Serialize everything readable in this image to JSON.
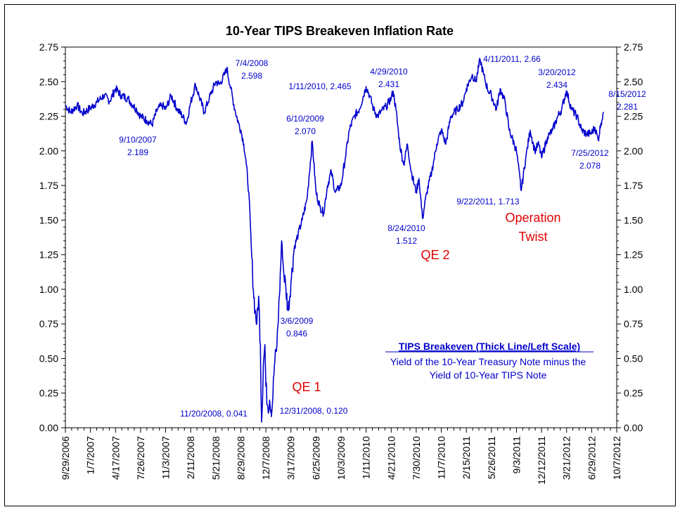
{
  "chart_data": {
    "type": "line",
    "title": "10-Year TIPS Breakeven Inflation Rate",
    "ylim": [
      0,
      2.75
    ],
    "y_ticks": [
      "0.00",
      "0.25",
      "0.50",
      "0.75",
      "1.00",
      "1.25",
      "1.50",
      "1.75",
      "2.00",
      "2.25",
      "2.50",
      "2.75"
    ],
    "x_range": [
      "2006-09-29",
      "2012-10-07"
    ],
    "x_ticks": [
      {
        "label": "9/29/2006",
        "date": "2006-09-29"
      },
      {
        "label": "1/7/2007",
        "date": "2007-01-07"
      },
      {
        "label": "4/17/2007",
        "date": "2007-04-17"
      },
      {
        "label": "7/26/2007",
        "date": "2007-07-26"
      },
      {
        "label": "11/3/2007",
        "date": "2007-11-03"
      },
      {
        "label": "2/11/2008",
        "date": "2008-02-11"
      },
      {
        "label": "5/21/2008",
        "date": "2008-05-21"
      },
      {
        "label": "8/29/2008",
        "date": "2008-08-29"
      },
      {
        "label": "12/7/2008",
        "date": "2008-12-07"
      },
      {
        "label": "3/17/2009",
        "date": "2009-03-17"
      },
      {
        "label": "6/25/2009",
        "date": "2009-06-25"
      },
      {
        "label": "10/3/2009",
        "date": "2009-10-03"
      },
      {
        "label": "1/11/2010",
        "date": "2010-01-11"
      },
      {
        "label": "4/21/2010",
        "date": "2010-04-21"
      },
      {
        "label": "7/30/2010",
        "date": "2010-07-30"
      },
      {
        "label": "11/7/2010",
        "date": "2010-11-07"
      },
      {
        "label": "2/15/2011",
        "date": "2011-02-15"
      },
      {
        "label": "5/26/2011",
        "date": "2011-05-26"
      },
      {
        "label": "9/3/2011",
        "date": "2011-09-03"
      },
      {
        "label": "12/12/2011",
        "date": "2011-12-12"
      },
      {
        "label": "3/21/2012",
        "date": "2012-03-21"
      },
      {
        "label": "6/29/2012",
        "date": "2012-06-29"
      },
      {
        "label": "10/7/2012",
        "date": "2012-10-07"
      }
    ],
    "series": [
      {
        "name": "TIPS Breakeven",
        "color": "#0000cc",
        "points": [
          [
            "2006-09-29",
            2.33
          ],
          [
            "2006-10-20",
            2.28
          ],
          [
            "2006-11-15",
            2.33
          ],
          [
            "2006-12-05",
            2.27
          ],
          [
            "2007-01-07",
            2.31
          ],
          [
            "2007-02-01",
            2.35
          ],
          [
            "2007-03-01",
            2.4
          ],
          [
            "2007-03-25",
            2.36
          ],
          [
            "2007-04-17",
            2.45
          ],
          [
            "2007-05-10",
            2.4
          ],
          [
            "2007-06-05",
            2.38
          ],
          [
            "2007-06-25",
            2.33
          ],
          [
            "2007-07-10",
            2.3
          ],
          [
            "2007-07-26",
            2.25
          ],
          [
            "2007-08-20",
            2.22
          ],
          [
            "2007-09-10",
            2.19
          ],
          [
            "2007-10-01",
            2.3
          ],
          [
            "2007-10-20",
            2.33
          ],
          [
            "2007-11-03",
            2.3
          ],
          [
            "2007-11-25",
            2.4
          ],
          [
            "2007-12-20",
            2.3
          ],
          [
            "2008-01-10",
            2.25
          ],
          [
            "2008-01-25",
            2.2
          ],
          [
            "2008-02-11",
            2.35
          ],
          [
            "2008-03-01",
            2.48
          ],
          [
            "2008-03-15",
            2.4
          ],
          [
            "2008-04-05",
            2.28
          ],
          [
            "2008-04-25",
            2.38
          ],
          [
            "2008-05-21",
            2.5
          ],
          [
            "2008-06-05",
            2.48
          ],
          [
            "2008-06-25",
            2.55
          ],
          [
            "2008-07-04",
            2.598
          ],
          [
            "2008-07-20",
            2.45
          ],
          [
            "2008-08-05",
            2.3
          ],
          [
            "2008-08-20",
            2.2
          ],
          [
            "2008-08-29",
            2.15
          ],
          [
            "2008-09-10",
            2.05
          ],
          [
            "2008-09-20",
            1.9
          ],
          [
            "2008-09-30",
            1.7
          ],
          [
            "2008-10-10",
            1.3
          ],
          [
            "2008-10-18",
            1.0
          ],
          [
            "2008-10-25",
            0.85
          ],
          [
            "2008-11-01",
            0.75
          ],
          [
            "2008-11-08",
            0.95
          ],
          [
            "2008-11-15",
            0.6
          ],
          [
            "2008-11-20",
            0.041
          ],
          [
            "2008-11-27",
            0.45
          ],
          [
            "2008-12-03",
            0.6
          ],
          [
            "2008-12-07",
            0.3
          ],
          [
            "2008-12-15",
            0.15
          ],
          [
            "2008-12-22",
            0.2
          ],
          [
            "2008-12-31",
            0.12
          ],
          [
            "2009-01-10",
            0.45
          ],
          [
            "2009-01-20",
            0.6
          ],
          [
            "2009-01-30",
            0.95
          ],
          [
            "2009-02-08",
            1.35
          ],
          [
            "2009-02-15",
            1.15
          ],
          [
            "2009-02-25",
            1.0
          ],
          [
            "2009-03-06",
            0.846
          ],
          [
            "2009-03-17",
            1.05
          ],
          [
            "2009-03-30",
            1.3
          ],
          [
            "2009-04-15",
            1.4
          ],
          [
            "2009-05-01",
            1.5
          ],
          [
            "2009-05-20",
            1.65
          ],
          [
            "2009-06-10",
            2.07
          ],
          [
            "2009-06-25",
            1.7
          ],
          [
            "2009-07-10",
            1.6
          ],
          [
            "2009-07-25",
            1.55
          ],
          [
            "2009-08-10",
            1.75
          ],
          [
            "2009-08-25",
            1.85
          ],
          [
            "2009-09-10",
            1.7
          ],
          [
            "2009-10-03",
            1.75
          ],
          [
            "2009-10-20",
            1.95
          ],
          [
            "2009-11-05",
            2.15
          ],
          [
            "2009-11-25",
            2.25
          ],
          [
            "2009-12-15",
            2.3
          ],
          [
            "2010-01-11",
            2.465
          ],
          [
            "2010-01-25",
            2.4
          ],
          [
            "2010-02-10",
            2.3
          ],
          [
            "2010-02-25",
            2.25
          ],
          [
            "2010-03-10",
            2.28
          ],
          [
            "2010-04-01",
            2.32
          ],
          [
            "2010-04-21",
            2.38
          ],
          [
            "2010-04-29",
            2.431
          ],
          [
            "2010-05-10",
            2.3
          ],
          [
            "2010-05-25",
            2.05
          ],
          [
            "2010-06-10",
            1.9
          ],
          [
            "2010-06-25",
            2.05
          ],
          [
            "2010-07-10",
            1.85
          ],
          [
            "2010-07-30",
            1.7
          ],
          [
            "2010-08-10",
            1.8
          ],
          [
            "2010-08-24",
            1.512
          ],
          [
            "2010-09-10",
            1.7
          ],
          [
            "2010-09-30",
            1.85
          ],
          [
            "2010-10-20",
            2.05
          ],
          [
            "2010-11-07",
            2.15
          ],
          [
            "2010-11-25",
            2.05
          ],
          [
            "2010-12-15",
            2.25
          ],
          [
            "2011-01-10",
            2.3
          ],
          [
            "2011-02-01",
            2.35
          ],
          [
            "2011-02-15",
            2.45
          ],
          [
            "2011-03-10",
            2.55
          ],
          [
            "2011-03-25",
            2.5
          ],
          [
            "2011-04-11",
            2.66
          ],
          [
            "2011-04-25",
            2.55
          ],
          [
            "2011-05-10",
            2.45
          ],
          [
            "2011-05-26",
            2.4
          ],
          [
            "2011-06-15",
            2.3
          ],
          [
            "2011-06-30",
            2.45
          ],
          [
            "2011-07-20",
            2.35
          ],
          [
            "2011-08-05",
            2.15
          ],
          [
            "2011-08-25",
            2.05
          ],
          [
            "2011-09-03",
            2.0
          ],
          [
            "2011-09-22",
            1.713
          ],
          [
            "2011-10-10",
            1.95
          ],
          [
            "2011-10-28",
            2.15
          ],
          [
            "2011-11-15",
            2.0
          ],
          [
            "2011-12-01",
            2.05
          ],
          [
            "2011-12-12",
            1.95
          ],
          [
            "2012-01-05",
            2.1
          ],
          [
            "2012-01-25",
            2.15
          ],
          [
            "2012-02-15",
            2.25
          ],
          [
            "2012-03-01",
            2.3
          ],
          [
            "2012-03-20",
            2.434
          ],
          [
            "2012-04-10",
            2.3
          ],
          [
            "2012-05-01",
            2.25
          ],
          [
            "2012-05-20",
            2.15
          ],
          [
            "2012-06-10",
            2.12
          ],
          [
            "2012-06-29",
            2.13
          ],
          [
            "2012-07-12",
            2.17
          ],
          [
            "2012-07-25",
            2.078
          ],
          [
            "2012-08-05",
            2.2
          ],
          [
            "2012-08-15",
            2.281
          ]
        ]
      }
    ],
    "annotations": [
      {
        "text": "7/4/2008",
        "text2": "2.598"
      },
      {
        "text": "9/10/2007",
        "text2": "2.189"
      },
      {
        "text": "1/11/2010, 2.465",
        "text2": ""
      },
      {
        "text": "4/29/2010",
        "text2": "2.431"
      },
      {
        "text": "6/10/2009",
        "text2": "2.070"
      },
      {
        "text": "4/11/2011, 2.66",
        "text2": ""
      },
      {
        "text": "3/20/2012",
        "text2": "2.434"
      },
      {
        "text": "8/15/2012",
        "text2": "2.281"
      },
      {
        "text": "7/25/2012",
        "text2": "2.078"
      },
      {
        "text": "9/22/2011, 1.713",
        "text2": ""
      },
      {
        "text": "8/24/2010",
        "text2": "1.512"
      },
      {
        "text": "3/6/2009",
        "text2": "0.846"
      },
      {
        "text": "11/20/2008, 0.041",
        "text2": ""
      },
      {
        "text": "12/31/2008, 0.120",
        "text2": ""
      }
    ],
    "events": [
      {
        "text": "QE 1",
        "text2": ""
      },
      {
        "text": "QE 2",
        "text2": ""
      },
      {
        "text": "Operation",
        "text2": "Twist"
      }
    ],
    "legend": {
      "title": "TIPS Breakeven (Thick Line/Left Scale)",
      "line1": "Yield of the 10-Year Treasury Note minus the",
      "line2": "Yield of 10-Year TIPS Note"
    }
  }
}
